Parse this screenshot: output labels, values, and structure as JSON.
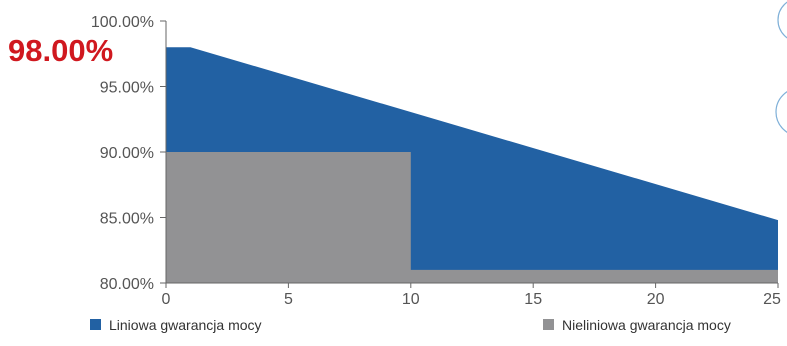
{
  "chart_data": {
    "type": "area",
    "title": "",
    "xlabel": "",
    "ylabel": "",
    "xlim": [
      0,
      25
    ],
    "ylim": [
      80,
      100
    ],
    "x_ticks": [
      "0",
      "5",
      "10",
      "15",
      "20",
      "25"
    ],
    "y_ticks": [
      "80.00%",
      "85.00%",
      "90.00%",
      "95.00%",
      "100.00%"
    ],
    "grid": false,
    "legend": "bottom",
    "callout": "98.00%",
    "series": [
      {
        "name": "Liniowa gwarancja mocy",
        "color": "#2261a3",
        "x": [
          0,
          1,
          25
        ],
        "y": [
          98,
          98,
          84.8
        ]
      },
      {
        "name": "Nieliniowa gwarancja mocy",
        "color": "#929294",
        "x": [
          0,
          10,
          10,
          25
        ],
        "y": [
          90,
          90,
          81,
          81
        ]
      }
    ]
  }
}
